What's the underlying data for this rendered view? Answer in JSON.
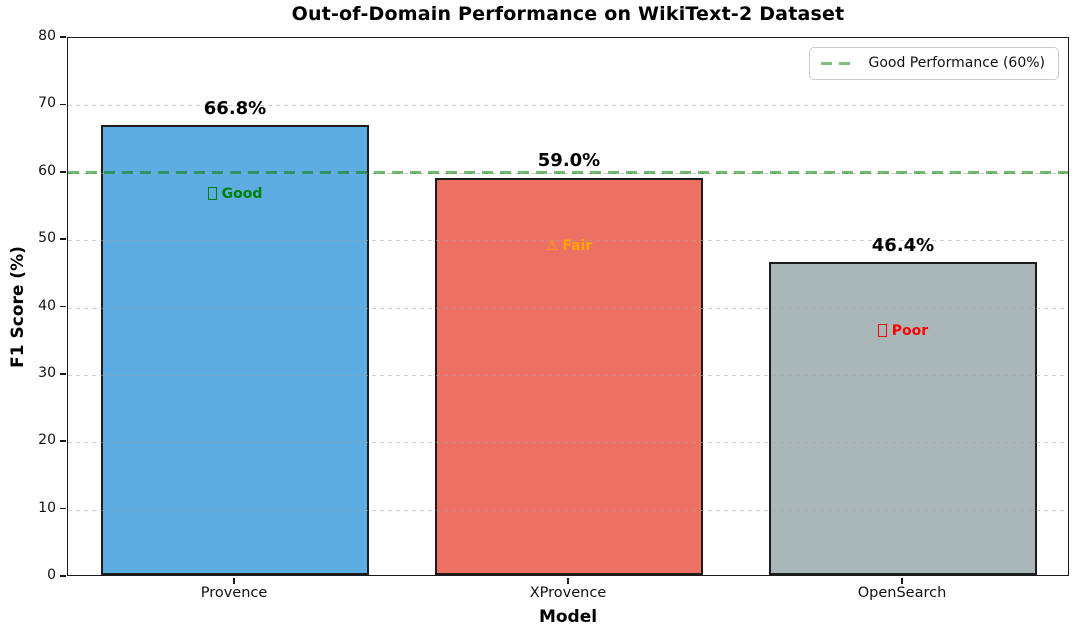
{
  "chart_data": {
    "type": "bar",
    "title": "Out-of-Domain Performance on WikiText-2 Dataset",
    "xlabel": "Model",
    "ylabel": "F1 Score (%)",
    "categories": [
      "Provence",
      "XProvence",
      "OpenSearch"
    ],
    "values": [
      66.8,
      59.0,
      46.4
    ],
    "bar_labels": [
      "66.8%",
      "59.0%",
      "46.4%"
    ],
    "bar_colors": [
      "#5dade2",
      "#ec7063",
      "#aab7b8"
    ],
    "bar_edge_color": "#1c1c1c",
    "annotations": [
      {
        "icon": "missing-glyph",
        "char": "",
        "label": "Good",
        "color": "#008000"
      },
      {
        "icon": "warning-triangle",
        "char": "⚠",
        "label": "Fair",
        "color": "#ffa500"
      },
      {
        "icon": "missing-glyph",
        "char": "",
        "label": "Poor",
        "color": "#ff0000"
      }
    ],
    "ylim": [
      0,
      80
    ],
    "yticks": [
      0,
      10,
      20,
      30,
      40,
      50,
      60,
      70,
      80
    ],
    "grid": "horizontal-dashed",
    "threshold": {
      "value": 60,
      "color": "#008000",
      "style": "dashed",
      "legend_label": "Good Performance (60%)"
    },
    "legend_position": "upper right"
  }
}
